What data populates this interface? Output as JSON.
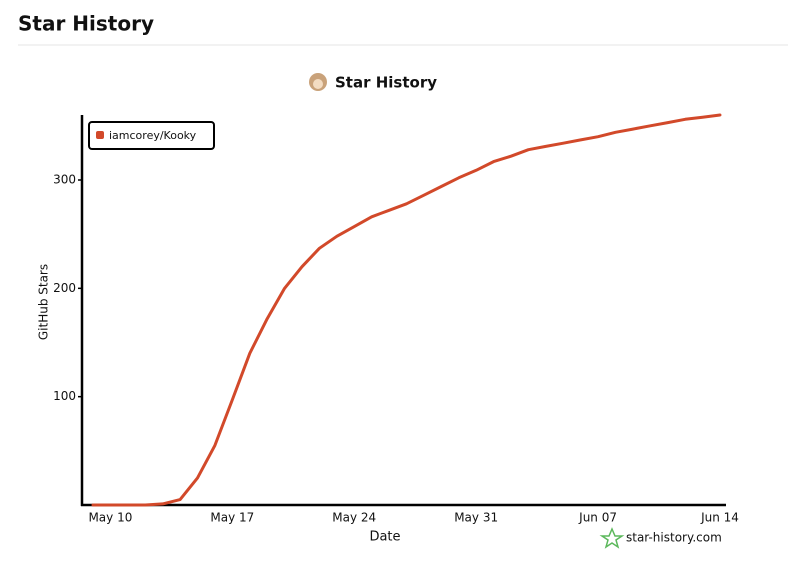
{
  "header": {
    "title": "Star History"
  },
  "chart_data": {
    "type": "line",
    "title": "Star History",
    "x_label": "Date",
    "y_label": "GitHub Stars",
    "watermark": "star-history.com",
    "categories": [
      null,
      "May 10",
      null,
      null,
      null,
      null,
      null,
      null,
      "May 17",
      null,
      null,
      null,
      null,
      null,
      null,
      "May 24",
      null,
      null,
      null,
      null,
      null,
      null,
      "May 31",
      null,
      null,
      null,
      null,
      null,
      null,
      "Jun 07",
      null,
      null,
      null,
      null,
      null,
      null,
      "Jun 14"
    ],
    "series": [
      {
        "name": "iamcorey/Kooky",
        "color": "#d2492a",
        "values": [
          0,
          0,
          0,
          0,
          1,
          5,
          25,
          55,
          97,
          140,
          172,
          200,
          220,
          237,
          248,
          257,
          266,
          272,
          278,
          286,
          294,
          302,
          309,
          317,
          322,
          328,
          331,
          334,
          337,
          340,
          344,
          347,
          350,
          353,
          356,
          358,
          360
        ]
      }
    ],
    "ylim": [
      0,
      360
    ],
    "yticks": [
      100,
      200,
      300
    ],
    "grid": false,
    "legend": "top-left"
  }
}
